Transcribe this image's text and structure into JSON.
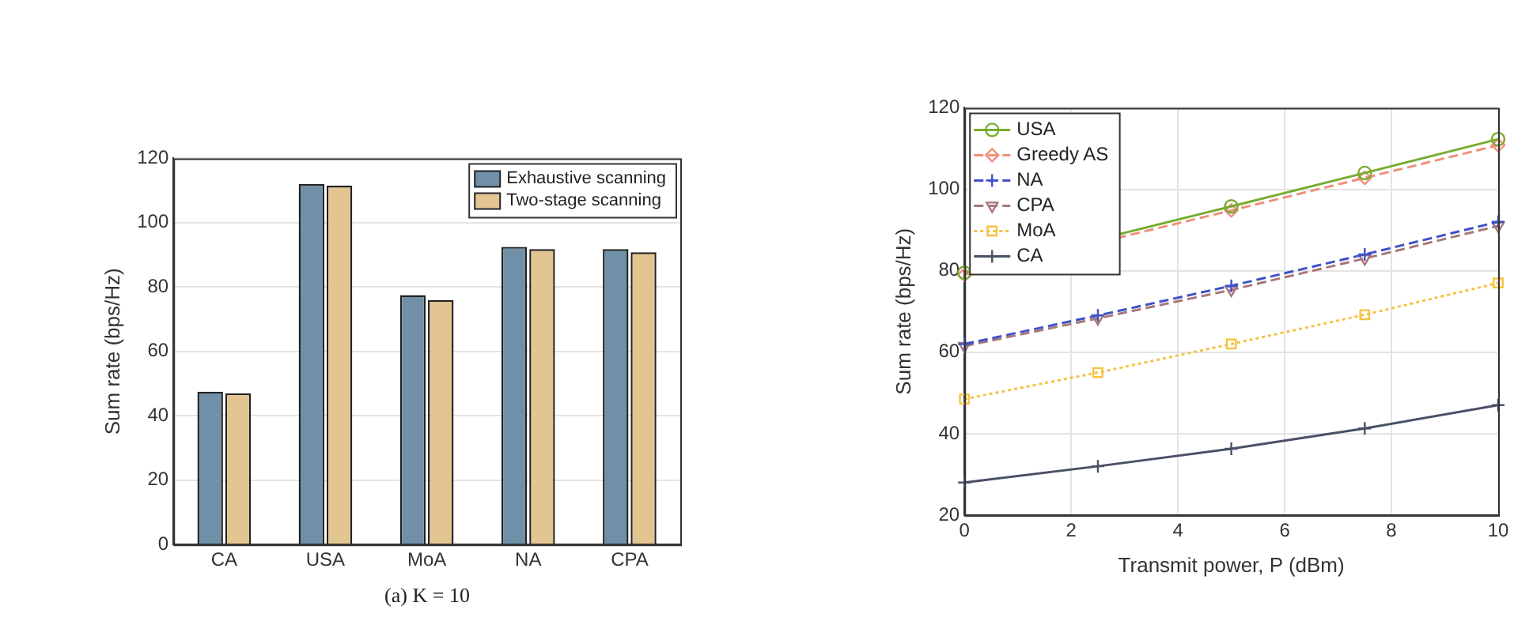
{
  "chart_data": [
    {
      "type": "bar",
      "ylabel": "Sum rate (bps/Hz)",
      "categories": [
        "CA",
        "USA",
        "MoA",
        "NA",
        "CPA"
      ],
      "series": [
        {
          "name": "Exhaustive scanning",
          "color": "#7090a8",
          "values": [
            47.5,
            112,
            77.5,
            92.5,
            91.8
          ]
        },
        {
          "name": "Two-stage scanning",
          "color": "#e3c592",
          "values": [
            47,
            111.5,
            76,
            91.8,
            90.8
          ]
        }
      ],
      "ylim": [
        0,
        120
      ],
      "yticks": [
        0,
        20,
        40,
        60,
        80,
        100,
        120
      ],
      "grid": "y",
      "legend": "top right",
      "annotations": [
        "(a) K = 10"
      ]
    },
    {
      "type": "line",
      "xlabel": "Transmit power, P (dBm)",
      "ylabel": "Sum rate (bps/Hz)",
      "x": [
        0,
        2.5,
        5,
        7.5,
        10
      ],
      "series": [
        {
          "name": "USA",
          "color": "#77ac30",
          "marker": "circle",
          "line_style": "solid",
          "values": [
            79.5,
            null,
            95.8,
            104,
            112.3
          ]
        },
        {
          "name": "Greedy AS",
          "color": "#f0907a",
          "marker": "diamond",
          "line_style": "dashed",
          "values": [
            79,
            null,
            94.8,
            102.8,
            110.8
          ]
        },
        {
          "name": "NA",
          "color": "#3f51c8",
          "marker": "cross",
          "line_style": "dashed",
          "values": [
            62,
            69,
            76.3,
            84,
            92
          ]
        },
        {
          "name": "CPA",
          "color": "#a87878",
          "marker": "triangle",
          "line_style": "dashed",
          "values": [
            61.5,
            68.3,
            75.3,
            83,
            91
          ]
        },
        {
          "name": "MoA",
          "color": "#f5c242",
          "marker": "square",
          "line_style": "dotted",
          "values": [
            48.5,
            55,
            62,
            69.2,
            77
          ]
        },
        {
          "name": "CA",
          "color": "#4a5068",
          "marker": "cross",
          "line_style": "solid",
          "values": [
            28,
            32,
            36.3,
            41.3,
            47
          ]
        }
      ],
      "xlim": [
        0,
        10
      ],
      "xticks": [
        0,
        2,
        4,
        6,
        8,
        10
      ],
      "ylim": [
        20,
        120
      ],
      "yticks": [
        20,
        40,
        60,
        80,
        100,
        120
      ],
      "grid": true,
      "legend": "top left"
    }
  ]
}
